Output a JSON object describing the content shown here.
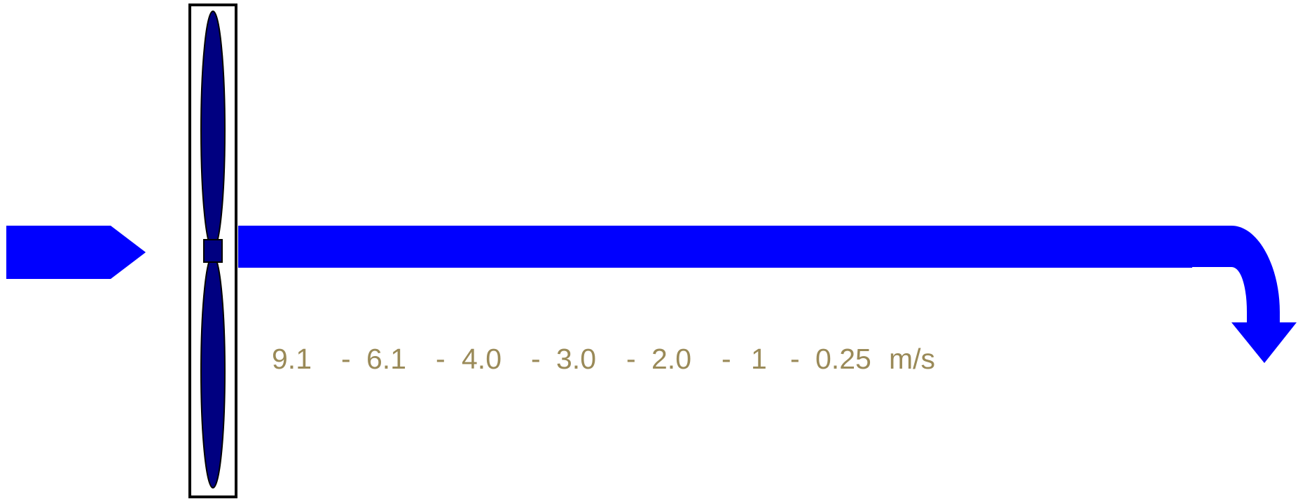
{
  "velocity_labels": [
    "9.1",
    "6.1",
    "4.0",
    "3.0",
    "2.0",
    "1",
    "0.25"
  ],
  "separator": "-",
  "unit": "m/s"
}
